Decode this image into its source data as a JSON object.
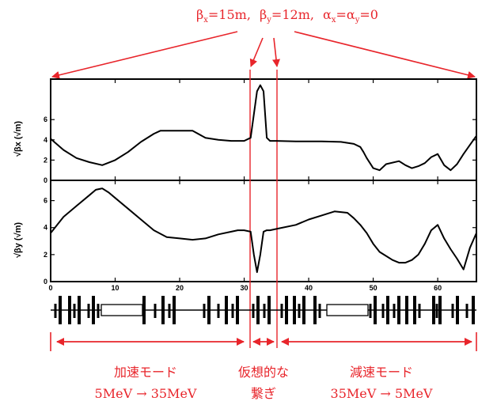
{
  "top_annotation": {
    "beta_x": "βx=15m,",
    "beta_y": "βy=12m,",
    "alpha": "αx=αy=0",
    "bx_base": "β",
    "bx_sub": "x",
    "bx_rest": "=15m,",
    "by_base": "β",
    "by_sub": "y",
    "by_rest": "=12m,",
    "ax_base": "α",
    "ax_sub": "x",
    "ax_eq": "=",
    "ay_base": "α",
    "ay_sub": "y",
    "ay_rest": "=0"
  },
  "sections": [
    {
      "label_line1": "加速モード",
      "label_line2": "5MeV → 35MeV"
    },
    {
      "label_line1": "仮想的な",
      "label_line2": "繋ぎ"
    },
    {
      "label_line1": "減速モード",
      "label_line2": "35MeV → 5MeV"
    }
  ],
  "colors": {
    "annotation": "#e8252b",
    "curve": "#000000"
  },
  "chart_data": [
    {
      "type": "line",
      "ylabel": "√βx (√m)",
      "xlim": [
        0,
        66
      ],
      "ylim": [
        0,
        10
      ],
      "x_ticks": [
        "0",
        "10",
        "20",
        "30",
        "40",
        "50",
        "60"
      ],
      "y_ticks": [
        "0",
        "2",
        "4",
        "6"
      ],
      "series": [
        {
          "x": [
            0,
            2,
            4,
            6,
            8,
            10,
            12,
            14,
            16,
            17,
            18,
            22,
            24,
            26,
            28,
            29,
            30,
            31,
            32,
            32.5,
            33,
            33.5,
            34,
            35,
            38,
            42,
            45,
            46,
            47,
            48,
            48.5,
            49,
            50,
            51,
            52,
            54,
            55,
            56,
            57,
            58,
            59,
            60,
            61,
            62,
            63,
            64,
            65,
            66
          ],
          "y": [
            4.1,
            3.0,
            2.2,
            1.8,
            1.5,
            2.0,
            2.8,
            3.8,
            4.6,
            4.9,
            4.9,
            4.9,
            4.2,
            4.0,
            3.9,
            3.9,
            3.9,
            4.2,
            8.8,
            9.4,
            8.8,
            4.2,
            3.9,
            3.9,
            3.85,
            3.85,
            3.8,
            3.7,
            3.6,
            3.3,
            2.8,
            2.2,
            1.2,
            1.0,
            1.6,
            1.9,
            1.5,
            1.2,
            1.4,
            1.7,
            2.3,
            2.6,
            1.5,
            1.0,
            1.6,
            2.6,
            3.5,
            4.4
          ]
        }
      ]
    },
    {
      "type": "line",
      "ylabel": "√βy (√m)",
      "xlim": [
        0,
        66
      ],
      "ylim": [
        0,
        7.5
      ],
      "x_ticks": [
        "0",
        "10",
        "20",
        "30",
        "40",
        "50",
        "60"
      ],
      "y_ticks": [
        "0",
        "2",
        "4",
        "6"
      ],
      "series": [
        {
          "x": [
            0,
            2,
            4,
            6,
            7,
            8,
            9,
            10,
            12,
            14,
            16,
            18,
            20,
            22,
            24,
            26,
            28,
            29,
            30,
            31,
            31.5,
            32,
            32.5,
            33,
            33.5,
            34,
            35,
            38,
            40,
            42,
            44,
            46,
            47,
            48,
            49,
            50,
            51,
            52,
            53,
            54,
            55,
            56,
            57,
            58,
            59,
            60,
            61,
            62,
            63,
            64,
            65,
            66
          ],
          "y": [
            3.6,
            4.8,
            5.6,
            6.4,
            6.8,
            6.9,
            6.6,
            6.2,
            5.4,
            4.6,
            3.8,
            3.3,
            3.2,
            3.1,
            3.2,
            3.5,
            3.7,
            3.8,
            3.8,
            3.7,
            2.0,
            0.7,
            2.0,
            3.7,
            3.8,
            3.8,
            3.9,
            4.2,
            4.6,
            4.9,
            5.2,
            5.1,
            4.7,
            4.2,
            3.6,
            2.8,
            2.2,
            1.9,
            1.6,
            1.4,
            1.4,
            1.6,
            2.0,
            2.8,
            3.8,
            4.2,
            3.2,
            2.4,
            1.7,
            0.9,
            2.5,
            3.6
          ]
        }
      ]
    }
  ]
}
